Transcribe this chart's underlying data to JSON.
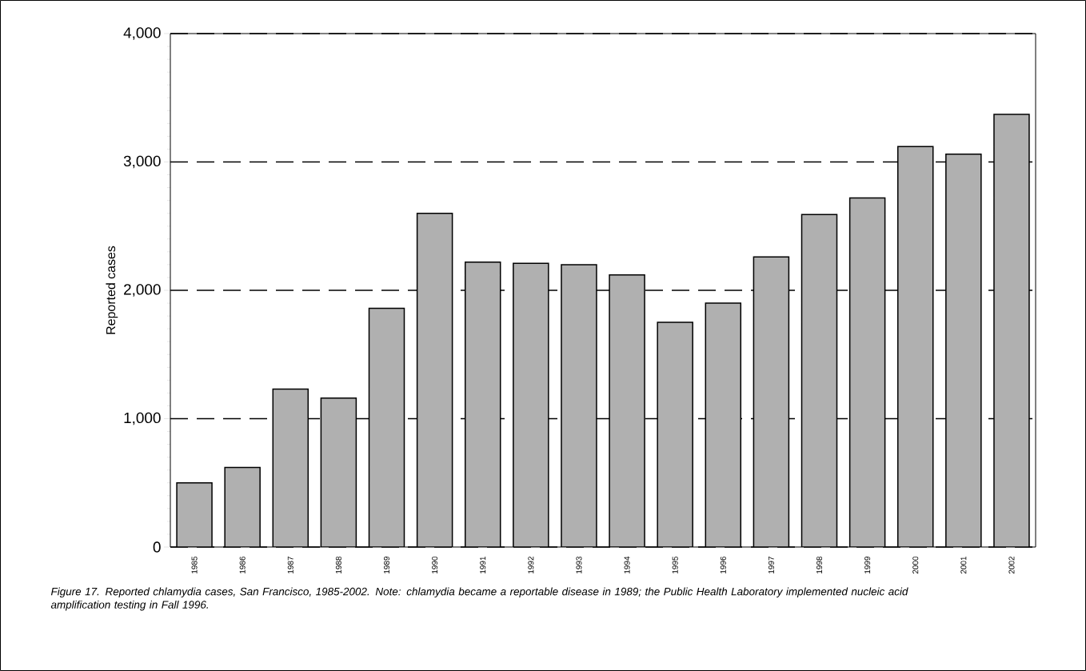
{
  "chart_data": {
    "type": "bar",
    "ylabel": "Reported cases",
    "categories": [
      "1985",
      "1986",
      "1987",
      "1988",
      "1989",
      "1990",
      "1991",
      "1992",
      "1993",
      "1994",
      "1995",
      "1996",
      "1997",
      "1998",
      "1999",
      "2000",
      "2001",
      "2002"
    ],
    "values": [
      500,
      620,
      1230,
      1160,
      1860,
      2600,
      2220,
      2210,
      2200,
      2120,
      1750,
      1900,
      2260,
      2590,
      2720,
      3120,
      3060,
      3370
    ],
    "color": "#b0b0b0",
    "ylim": [
      0,
      4000
    ],
    "yticks": [
      0,
      {
        "value": 1000,
        "label": "1,000"
      },
      {
        "value": 2000,
        "label": "2,000"
      },
      {
        "value": 3000,
        "label": "3,000"
      },
      {
        "value": 4000,
        "label": "4,000"
      }
    ],
    "grid": "y",
    "line_style": "dashed",
    "annotations": [
      "Figure 17.  Reported chlamydia cases, San Francisco, 1985-2002.  Note: chlamydia became a reportable disease in 1989; the Public Health Laboratory implemented nucleic acid amplification testing in Fall 1996."
    ]
  }
}
